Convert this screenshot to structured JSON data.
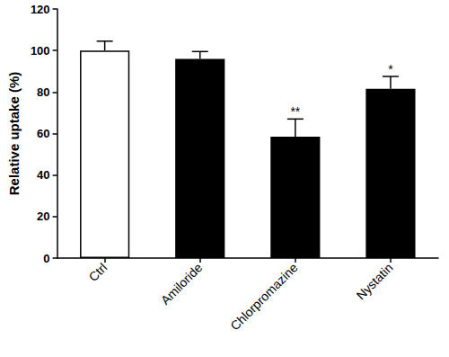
{
  "chart_data": {
    "type": "bar",
    "y_label": "Relative uptake (%)",
    "categories": [
      "Ctrl",
      "Amiloride",
      "Chlorpromazine",
      "Nystatin"
    ],
    "values": [
      100,
      96,
      58.5,
      81.5
    ],
    "errors": [
      4.5,
      3.5,
      8.5,
      6
    ],
    "significance": [
      null,
      null,
      "**",
      "*"
    ],
    "colors": [
      "#ffffff",
      "#000000",
      "#000000",
      "#000000"
    ],
    "ylim": [
      0,
      120
    ],
    "yticks": [
      0,
      20,
      40,
      60,
      80,
      100,
      120
    ],
    "grid": false
  }
}
